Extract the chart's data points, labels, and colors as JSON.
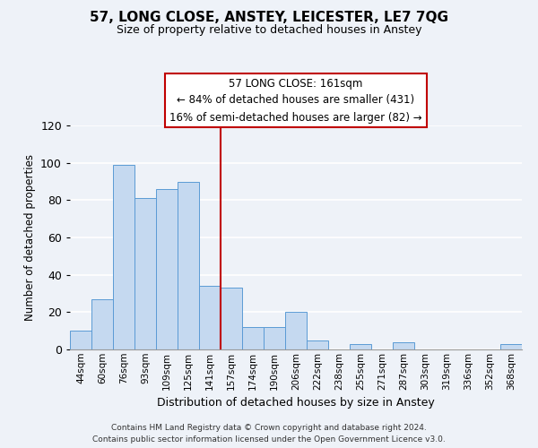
{
  "title": "57, LONG CLOSE, ANSTEY, LEICESTER, LE7 7QG",
  "subtitle": "Size of property relative to detached houses in Anstey",
  "xlabel": "Distribution of detached houses by size in Anstey",
  "ylabel": "Number of detached properties",
  "bar_labels": [
    "44sqm",
    "60sqm",
    "76sqm",
    "93sqm",
    "109sqm",
    "125sqm",
    "141sqm",
    "157sqm",
    "174sqm",
    "190sqm",
    "206sqm",
    "222sqm",
    "238sqm",
    "255sqm",
    "271sqm",
    "287sqm",
    "303sqm",
    "319sqm",
    "336sqm",
    "352sqm",
    "368sqm"
  ],
  "bar_values": [
    10,
    27,
    99,
    81,
    86,
    90,
    34,
    33,
    12,
    12,
    20,
    5,
    0,
    3,
    0,
    4,
    0,
    0,
    0,
    0,
    3
  ],
  "bar_color": "#c5d9f0",
  "bar_edge_color": "#5b9bd5",
  "ylim": [
    0,
    120
  ],
  "yticks": [
    0,
    20,
    40,
    60,
    80,
    100,
    120
  ],
  "vline_index": 7,
  "vline_color": "#c00000",
  "annotation_line1": "57 LONG CLOSE: 161sqm",
  "annotation_line2": "← 84% of detached houses are smaller (431)",
  "annotation_line3": "16% of semi-detached houses are larger (82) →",
  "annotation_box_color": "#ffffff",
  "annotation_box_edge": "#c00000",
  "footer_line1": "Contains HM Land Registry data © Crown copyright and database right 2024.",
  "footer_line2": "Contains public sector information licensed under the Open Government Licence v3.0.",
  "bg_color": "#eef2f8"
}
